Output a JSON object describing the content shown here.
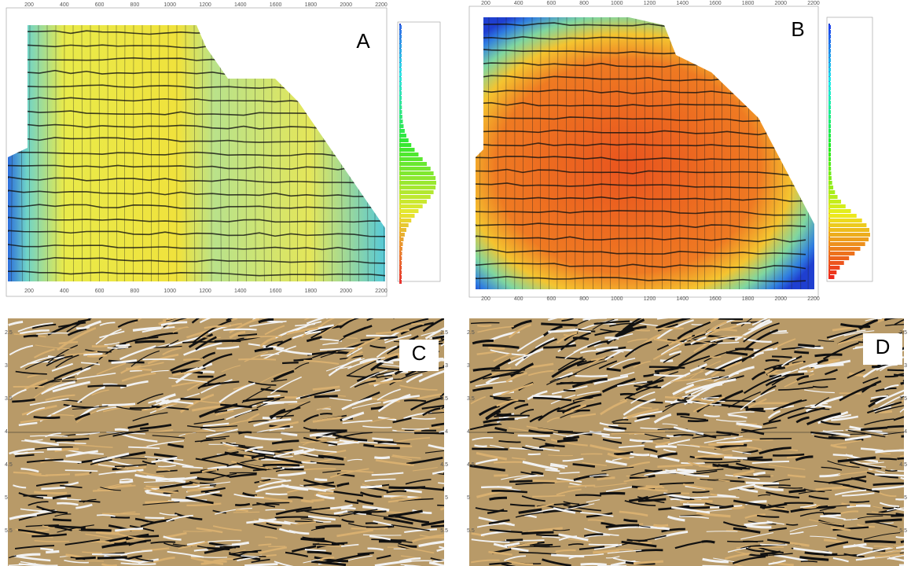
{
  "panels": [
    {
      "label": "A",
      "x_labels": [
        "200",
        "400",
        "600",
        "800",
        "1000",
        "1200",
        "1400",
        "1600",
        "1800",
        "2000",
        "2200"
      ]
    },
    {
      "label": "B",
      "x_labels": [
        "200",
        "400",
        "600",
        "800",
        "1000",
        "1200",
        "1400",
        "1600",
        "1800",
        "2000",
        "2200"
      ]
    },
    {
      "label": "C",
      "y_labels": [
        "2.5",
        "3",
        "3.5",
        "4",
        "4.5",
        "5",
        "5.5"
      ]
    },
    {
      "label": "D",
      "y_labels": [
        "2.5",
        "3",
        "3.5",
        "4",
        "4.5",
        "5",
        "5.5"
      ]
    }
  ]
}
